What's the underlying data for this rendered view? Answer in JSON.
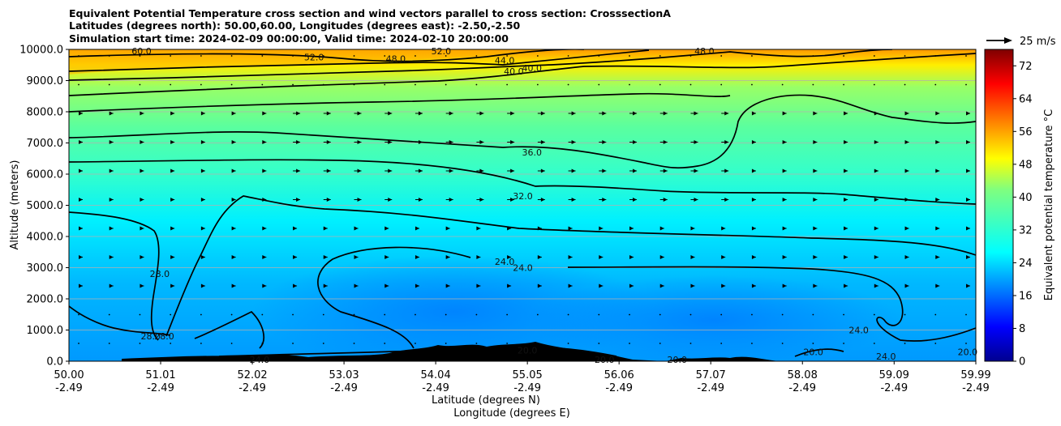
{
  "chart_data": {
    "type": "heatmap",
    "title_lines": [
      "Equivalent Potential Temperature cross section and wind vectors parallel to cross section: CrosssectionA",
      "Latitudes (degrees north): 50.00,60.00, Longitudes (degrees east): -2.50,-2.50",
      "Simulation start time: 2024-02-09 00:00:00, Valid time: 2024-02-10 20:00:00"
    ],
    "ylabel": "Altitude (meters)",
    "xlabel_lat": "Latitude (degrees N)",
    "xlabel_lon": "Longitude (degrees E)",
    "ylim": [
      0,
      10000
    ],
    "xlim": [
      50.0,
      59.99
    ],
    "y_ticks": [
      "0.0",
      "1000.0",
      "2000.0",
      "3000.0",
      "4000.0",
      "5000.0",
      "6000.0",
      "7000.0",
      "8000.0",
      "9000.0",
      "10000.0"
    ],
    "y_tick_values": [
      0,
      1000,
      2000,
      3000,
      4000,
      5000,
      6000,
      7000,
      8000,
      9000,
      10000
    ],
    "x_tick_values": [
      50.0,
      51.01,
      52.02,
      53.03,
      54.04,
      55.05,
      56.06,
      57.07,
      58.08,
      59.09,
      59.99
    ],
    "x_ticks_lat": [
      "50.00",
      "51.01",
      "52.02",
      "53.03",
      "54.04",
      "55.05",
      "56.06",
      "57.07",
      "58.08",
      "59.09",
      "59.99"
    ],
    "x_ticks_lon": [
      "-2.49",
      "-2.49",
      "-2.49",
      "-2.49",
      "-2.49",
      "-2.49",
      "-2.49",
      "-2.49",
      "-2.49",
      "-2.49",
      "-2.49"
    ],
    "colorbar": {
      "label": "Equivalent potential temperature °C",
      "min": 0,
      "max": 76,
      "ticks": [
        "0",
        "8",
        "16",
        "24",
        "32",
        "40",
        "48",
        "56",
        "64",
        "72"
      ],
      "tick_values": [
        0,
        8,
        16,
        24,
        32,
        40,
        48,
        56,
        64,
        72
      ],
      "colormap": "jet"
    },
    "quiver_key": "25 m/s",
    "contour_levels": [
      20,
      24,
      28,
      32,
      36,
      40,
      44,
      48,
      52,
      56,
      60
    ],
    "contour_labels": [
      {
        "text": "60.0",
        "lat": 50.8,
        "alt": 9950
      },
      {
        "text": "52.0",
        "lat": 52.7,
        "alt": 9750
      },
      {
        "text": "48.0",
        "lat": 53.6,
        "alt": 9700
      },
      {
        "text": "52.0",
        "lat": 54.1,
        "alt": 9950
      },
      {
        "text": "44.0",
        "lat": 54.8,
        "alt": 9650
      },
      {
        "text": "40.0",
        "lat": 54.9,
        "alt": 9300
      },
      {
        "text": "40.0",
        "lat": 55.1,
        "alt": 9400
      },
      {
        "text": "48.0",
        "lat": 57.0,
        "alt": 9950
      },
      {
        "text": "36.0",
        "lat": 55.1,
        "alt": 6700
      },
      {
        "text": "32.0",
        "lat": 55.0,
        "alt": 5300
      },
      {
        "text": "24.0",
        "lat": 54.8,
        "alt": 3200
      },
      {
        "text": "24.0",
        "lat": 55.0,
        "alt": 3000
      },
      {
        "text": "28.0",
        "lat": 51.0,
        "alt": 2800
      },
      {
        "text": "28.0",
        "lat": 50.9,
        "alt": 800
      },
      {
        "text": "28.0",
        "lat": 51.05,
        "alt": 800
      },
      {
        "text": "24.0",
        "lat": 52.1,
        "alt": 50
      },
      {
        "text": "20.0",
        "lat": 55.05,
        "alt": 350
      },
      {
        "text": "20.0",
        "lat": 55.9,
        "alt": 50
      },
      {
        "text": "20.0",
        "lat": 56.7,
        "alt": 50
      },
      {
        "text": "24.0",
        "lat": 58.7,
        "alt": 1000
      },
      {
        "text": "20.0",
        "lat": 58.2,
        "alt": 300
      },
      {
        "text": "24.0",
        "lat": 59.0,
        "alt": 150
      },
      {
        "text": "20.0",
        "lat": 59.9,
        "alt": 300
      }
    ],
    "theta_e_profile": [
      {
        "alt": 0,
        "value": 24
      },
      {
        "alt": 1000,
        "value": 23
      },
      {
        "alt": 2000,
        "value": 22
      },
      {
        "alt": 3000,
        "value": 25
      },
      {
        "alt": 4000,
        "value": 29
      },
      {
        "alt": 5000,
        "value": 31
      },
      {
        "alt": 6000,
        "value": 33
      },
      {
        "alt": 7000,
        "value": 36
      },
      {
        "alt": 8000,
        "value": 39
      },
      {
        "alt": 9000,
        "value": 43
      },
      {
        "alt": 10000,
        "value": 55
      }
    ]
  }
}
